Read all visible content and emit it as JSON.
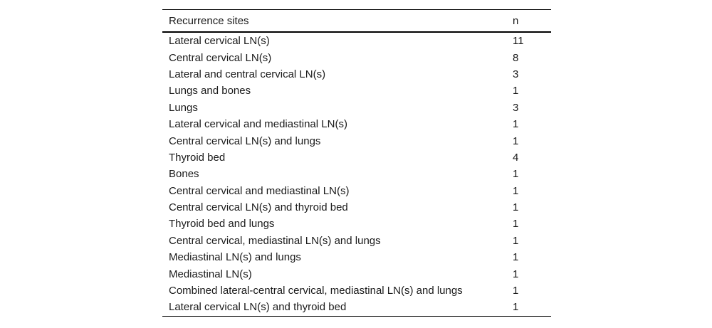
{
  "table": {
    "columns": {
      "site": "Recurrence sites",
      "n": "n"
    },
    "rows": [
      {
        "site": "Lateral cervical LN(s)",
        "n": "11"
      },
      {
        "site": "Central cervical LN(s)",
        "n": "8"
      },
      {
        "site": "Lateral and central cervical LN(s)",
        "n": "3"
      },
      {
        "site": "Lungs and bones",
        "n": "1"
      },
      {
        "site": "Lungs",
        "n": "3"
      },
      {
        "site": "Lateral cervical and mediastinal LN(s)",
        "n": "1"
      },
      {
        "site": "Central cervical LN(s) and lungs",
        "n": "1"
      },
      {
        "site": "Thyroid bed",
        "n": "4"
      },
      {
        "site": "Bones",
        "n": "1"
      },
      {
        "site": "Central cervical and mediastinal LN(s)",
        "n": "1"
      },
      {
        "site": "Central cervical LN(s) and thyroid bed",
        "n": "1"
      },
      {
        "site": "Thyroid bed and lungs",
        "n": "1"
      },
      {
        "site": "Central cervical, mediastinal LN(s) and lungs",
        "n": "1"
      },
      {
        "site": "Mediastinal LN(s) and lungs",
        "n": "1"
      },
      {
        "site": "Mediastinal LN(s)",
        "n": "1"
      },
      {
        "site": "Combined lateral-central cervical, mediastinal LN(s) and lungs",
        "n": "1"
      },
      {
        "site": "Lateral cervical LN(s) and thyroid bed",
        "n": "1"
      }
    ]
  },
  "colors": {
    "text": "#1a1a1a",
    "rule": "#000000",
    "background": "#ffffff"
  }
}
